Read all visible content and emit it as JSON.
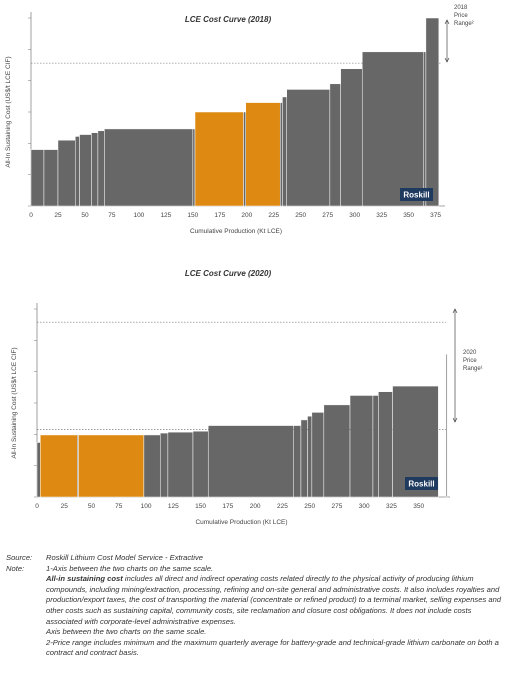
{
  "chart_data": [
    {
      "type": "bar",
      "variant": "cost-curve",
      "title": "LCE Cost Curve (2018)",
      "xlabel": "Cumulative Production (Kt LCE)",
      "ylabel": "All-In Sustaining Cost (US$/t LCE CIF)",
      "xlim": [
        0,
        380
      ],
      "ylim": [
        0,
        100
      ],
      "xticks": [
        "0",
        "25",
        "50",
        "75",
        "100",
        "125",
        "150",
        "175",
        "200",
        "225",
        "250",
        "275",
        "300",
        "325",
        "350",
        "375"
      ],
      "grid": false,
      "segments": [
        {
          "x0": 0,
          "x1": 12,
          "y": 30,
          "color": "#676767"
        },
        {
          "x0": 12,
          "x1": 25,
          "y": 30,
          "color": "#676767"
        },
        {
          "x0": 25,
          "x1": 41,
          "y": 35,
          "color": "#676767"
        },
        {
          "x0": 41,
          "x1": 45,
          "y": 37,
          "color": "#676767"
        },
        {
          "x0": 45,
          "x1": 56,
          "y": 38,
          "color": "#676767"
        },
        {
          "x0": 56,
          "x1": 62,
          "y": 39,
          "color": "#676767"
        },
        {
          "x0": 62,
          "x1": 68,
          "y": 40,
          "color": "#676767"
        },
        {
          "x0": 68,
          "x1": 150,
          "y": 41,
          "color": "#676767"
        },
        {
          "x0": 150,
          "x1": 152,
          "y": 41,
          "color": "#676767"
        },
        {
          "x0": 152,
          "x1": 197,
          "y": 50,
          "color": "#de8a12"
        },
        {
          "x0": 197,
          "x1": 199,
          "y": 50,
          "color": "#676767"
        },
        {
          "x0": 199,
          "x1": 231,
          "y": 55,
          "color": "#de8a12"
        },
        {
          "x0": 231,
          "x1": 233,
          "y": 55,
          "color": "#676767"
        },
        {
          "x0": 233,
          "x1": 237,
          "y": 58,
          "color": "#676767"
        },
        {
          "x0": 237,
          "x1": 277,
          "y": 62,
          "color": "#676767"
        },
        {
          "x0": 277,
          "x1": 287,
          "y": 65,
          "color": "#676767"
        },
        {
          "x0": 287,
          "x1": 307,
          "y": 73,
          "color": "#676767"
        },
        {
          "x0": 307,
          "x1": 364,
          "y": 82,
          "color": "#676767"
        },
        {
          "x0": 364,
          "x1": 366,
          "y": 82,
          "color": "#676767"
        },
        {
          "x0": 366,
          "x1": 378,
          "y": 100,
          "color": "#676767"
        }
      ],
      "price_range": {
        "label_lines": [
          "2018",
          "Price",
          "Range²"
        ],
        "y_low": 0,
        "y_high": 0
      },
      "reference_line": {
        "y": 76
      },
      "logo": "Roskill"
    },
    {
      "type": "bar",
      "variant": "cost-curve",
      "title": "LCE Cost Curve (2020)",
      "xlabel": "Cumulative Production (Kt LCE)",
      "ylabel": "All-In Sustaining Cost (US$/t LCE CIF)",
      "xlim": [
        0,
        375
      ],
      "ylim": [
        0,
        100
      ],
      "xticks": [
        "0",
        "25",
        "50",
        "75",
        "100",
        "125",
        "150",
        "175",
        "200",
        "225",
        "250",
        "275",
        "300",
        "325",
        "350"
      ],
      "grid": false,
      "segments": [
        {
          "x0": 0,
          "x1": 3,
          "y": 29,
          "color": "#676767"
        },
        {
          "x0": 3,
          "x1": 37,
          "y": 33,
          "color": "#de8a12"
        },
        {
          "x0": 37,
          "x1": 38,
          "y": 33,
          "color": "#676767"
        },
        {
          "x0": 38,
          "x1": 98,
          "y": 33,
          "color": "#de8a12"
        },
        {
          "x0": 98,
          "x1": 113,
          "y": 33,
          "color": "#676767"
        },
        {
          "x0": 113,
          "x1": 120,
          "y": 34,
          "color": "#676767"
        },
        {
          "x0": 120,
          "x1": 143,
          "y": 34.5,
          "color": "#676767"
        },
        {
          "x0": 143,
          "x1": 157,
          "y": 35,
          "color": "#676767"
        },
        {
          "x0": 157,
          "x1": 235,
          "y": 38,
          "color": "#676767"
        },
        {
          "x0": 235,
          "x1": 242,
          "y": 38,
          "color": "#676767"
        },
        {
          "x0": 242,
          "x1": 248,
          "y": 41,
          "color": "#676767"
        },
        {
          "x0": 248,
          "x1": 252,
          "y": 43,
          "color": "#676767"
        },
        {
          "x0": 252,
          "x1": 263,
          "y": 45,
          "color": "#676767"
        },
        {
          "x0": 263,
          "x1": 287,
          "y": 49,
          "color": "#676767"
        },
        {
          "x0": 287,
          "x1": 308,
          "y": 54,
          "color": "#676767"
        },
        {
          "x0": 308,
          "x1": 313,
          "y": 54,
          "color": "#676767"
        },
        {
          "x0": 313,
          "x1": 326,
          "y": 56,
          "color": "#676767"
        },
        {
          "x0": 326,
          "x1": 368,
          "y": 59,
          "color": "#676767"
        },
        {
          "x0": 375,
          "x1": 376,
          "y": 76,
          "color": "#676767"
        }
      ],
      "price_range": {
        "label_lines": [
          "2020",
          "Price",
          "Range¹"
        ],
        "y_low": 0,
        "y_high": 0
      },
      "reference_line": {
        "y": 36
      },
      "top_reference_line": {
        "y": 93
      },
      "logo": "Roskill"
    }
  ],
  "notes": {
    "source_label": "Source:",
    "source_text": "Roskill Lithium Cost Model Service - Extractive",
    "note_label": "Note:",
    "note_1": "1-Axis between the two charts on the same scale.",
    "aisc_term": "All-in sustaining cost",
    "aisc_text": " includes all direct and indirect operating costs related directly to the physical activity of producing lithium compounds, including mining/extraction, processing, refining and on-site general and administrative costs. It also includes royalties and production/export taxes, the cost of transporting the material (concentrate or refined product) to a terminal market, selling expenses and other costs such as sustaining capital, community costs, site reclamation and closure cost obligations. It does not include costs associated with corporate-level administrative expenses.",
    "axis_note": "Axis between the two charts on the same scale.",
    "note_2": "2-Price range includes minimum and the maximum quarterly average for battery-grade and technical-grade lithium carbonate on both a contract and contract basis."
  },
  "colors": {
    "bar_gray": "#676767",
    "bar_orange": "#de8a12",
    "logo_bg": "#1f3a5f"
  }
}
